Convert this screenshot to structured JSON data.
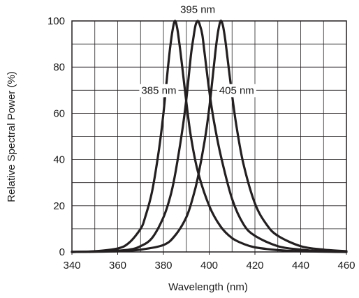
{
  "chart_data": {
    "type": "line",
    "title": "",
    "xlabel": "Wavelength (nm)",
    "ylabel": "Relative Spectral Power (%)",
    "xlim": [
      340,
      460
    ],
    "ylim": [
      0,
      100
    ],
    "x_ticks": [
      340,
      360,
      380,
      400,
      420,
      440,
      460
    ],
    "y_ticks": [
      0,
      20,
      40,
      60,
      80,
      100
    ],
    "grid": true,
    "line_color": "#231f20",
    "series": [
      {
        "x": [
          340,
          350,
          360,
          365,
          370,
          372,
          375,
          378,
          380,
          382,
          383,
          384,
          385,
          386,
          387,
          388,
          390,
          392,
          395,
          400,
          405,
          410,
          415,
          420,
          430,
          440,
          460
        ],
        "values": [
          0,
          0.3,
          1.5,
          4,
          10,
          15,
          26,
          44,
          60,
          80,
          89,
          96,
          100,
          97,
          90,
          82,
          65,
          50,
          35,
          20,
          11,
          6,
          3.5,
          2,
          0.8,
          0.3,
          0
        ]
      },
      {
        "x": [
          340,
          355,
          365,
          370,
          375,
          380,
          383,
          385,
          388,
          390,
          392,
          393,
          394,
          395,
          396,
          397,
          398,
          400,
          402,
          405,
          410,
          415,
          420,
          430,
          440,
          450,
          460
        ],
        "values": [
          0,
          0.3,
          1,
          2.5,
          6,
          15,
          24,
          33,
          51,
          66,
          85,
          92,
          98,
          100,
          98,
          94,
          86,
          70,
          57,
          42,
          23,
          12,
          7,
          2.5,
          1,
          0.3,
          0
        ]
      },
      {
        "x": [
          340,
          360,
          370,
          380,
          385,
          390,
          393,
          395,
          398,
          400,
          402,
          403,
          404,
          405,
          406,
          407,
          408,
          410,
          412,
          415,
          420,
          425,
          430,
          440,
          450,
          460
        ],
        "values": [
          0,
          0.3,
          1,
          3,
          7,
          15,
          24,
          32,
          48,
          62,
          80,
          89,
          96,
          100,
          98,
          92,
          84,
          68,
          54,
          38,
          21,
          12,
          7,
          2.5,
          1,
          0.3
        ]
      }
    ],
    "annotations": [
      {
        "text": "395 nm",
        "x": 395,
        "y": 105
      },
      {
        "text": "385 nm",
        "x": 378,
        "y": 70
      },
      {
        "text": "405 nm",
        "x": 412,
        "y": 70
      }
    ]
  }
}
